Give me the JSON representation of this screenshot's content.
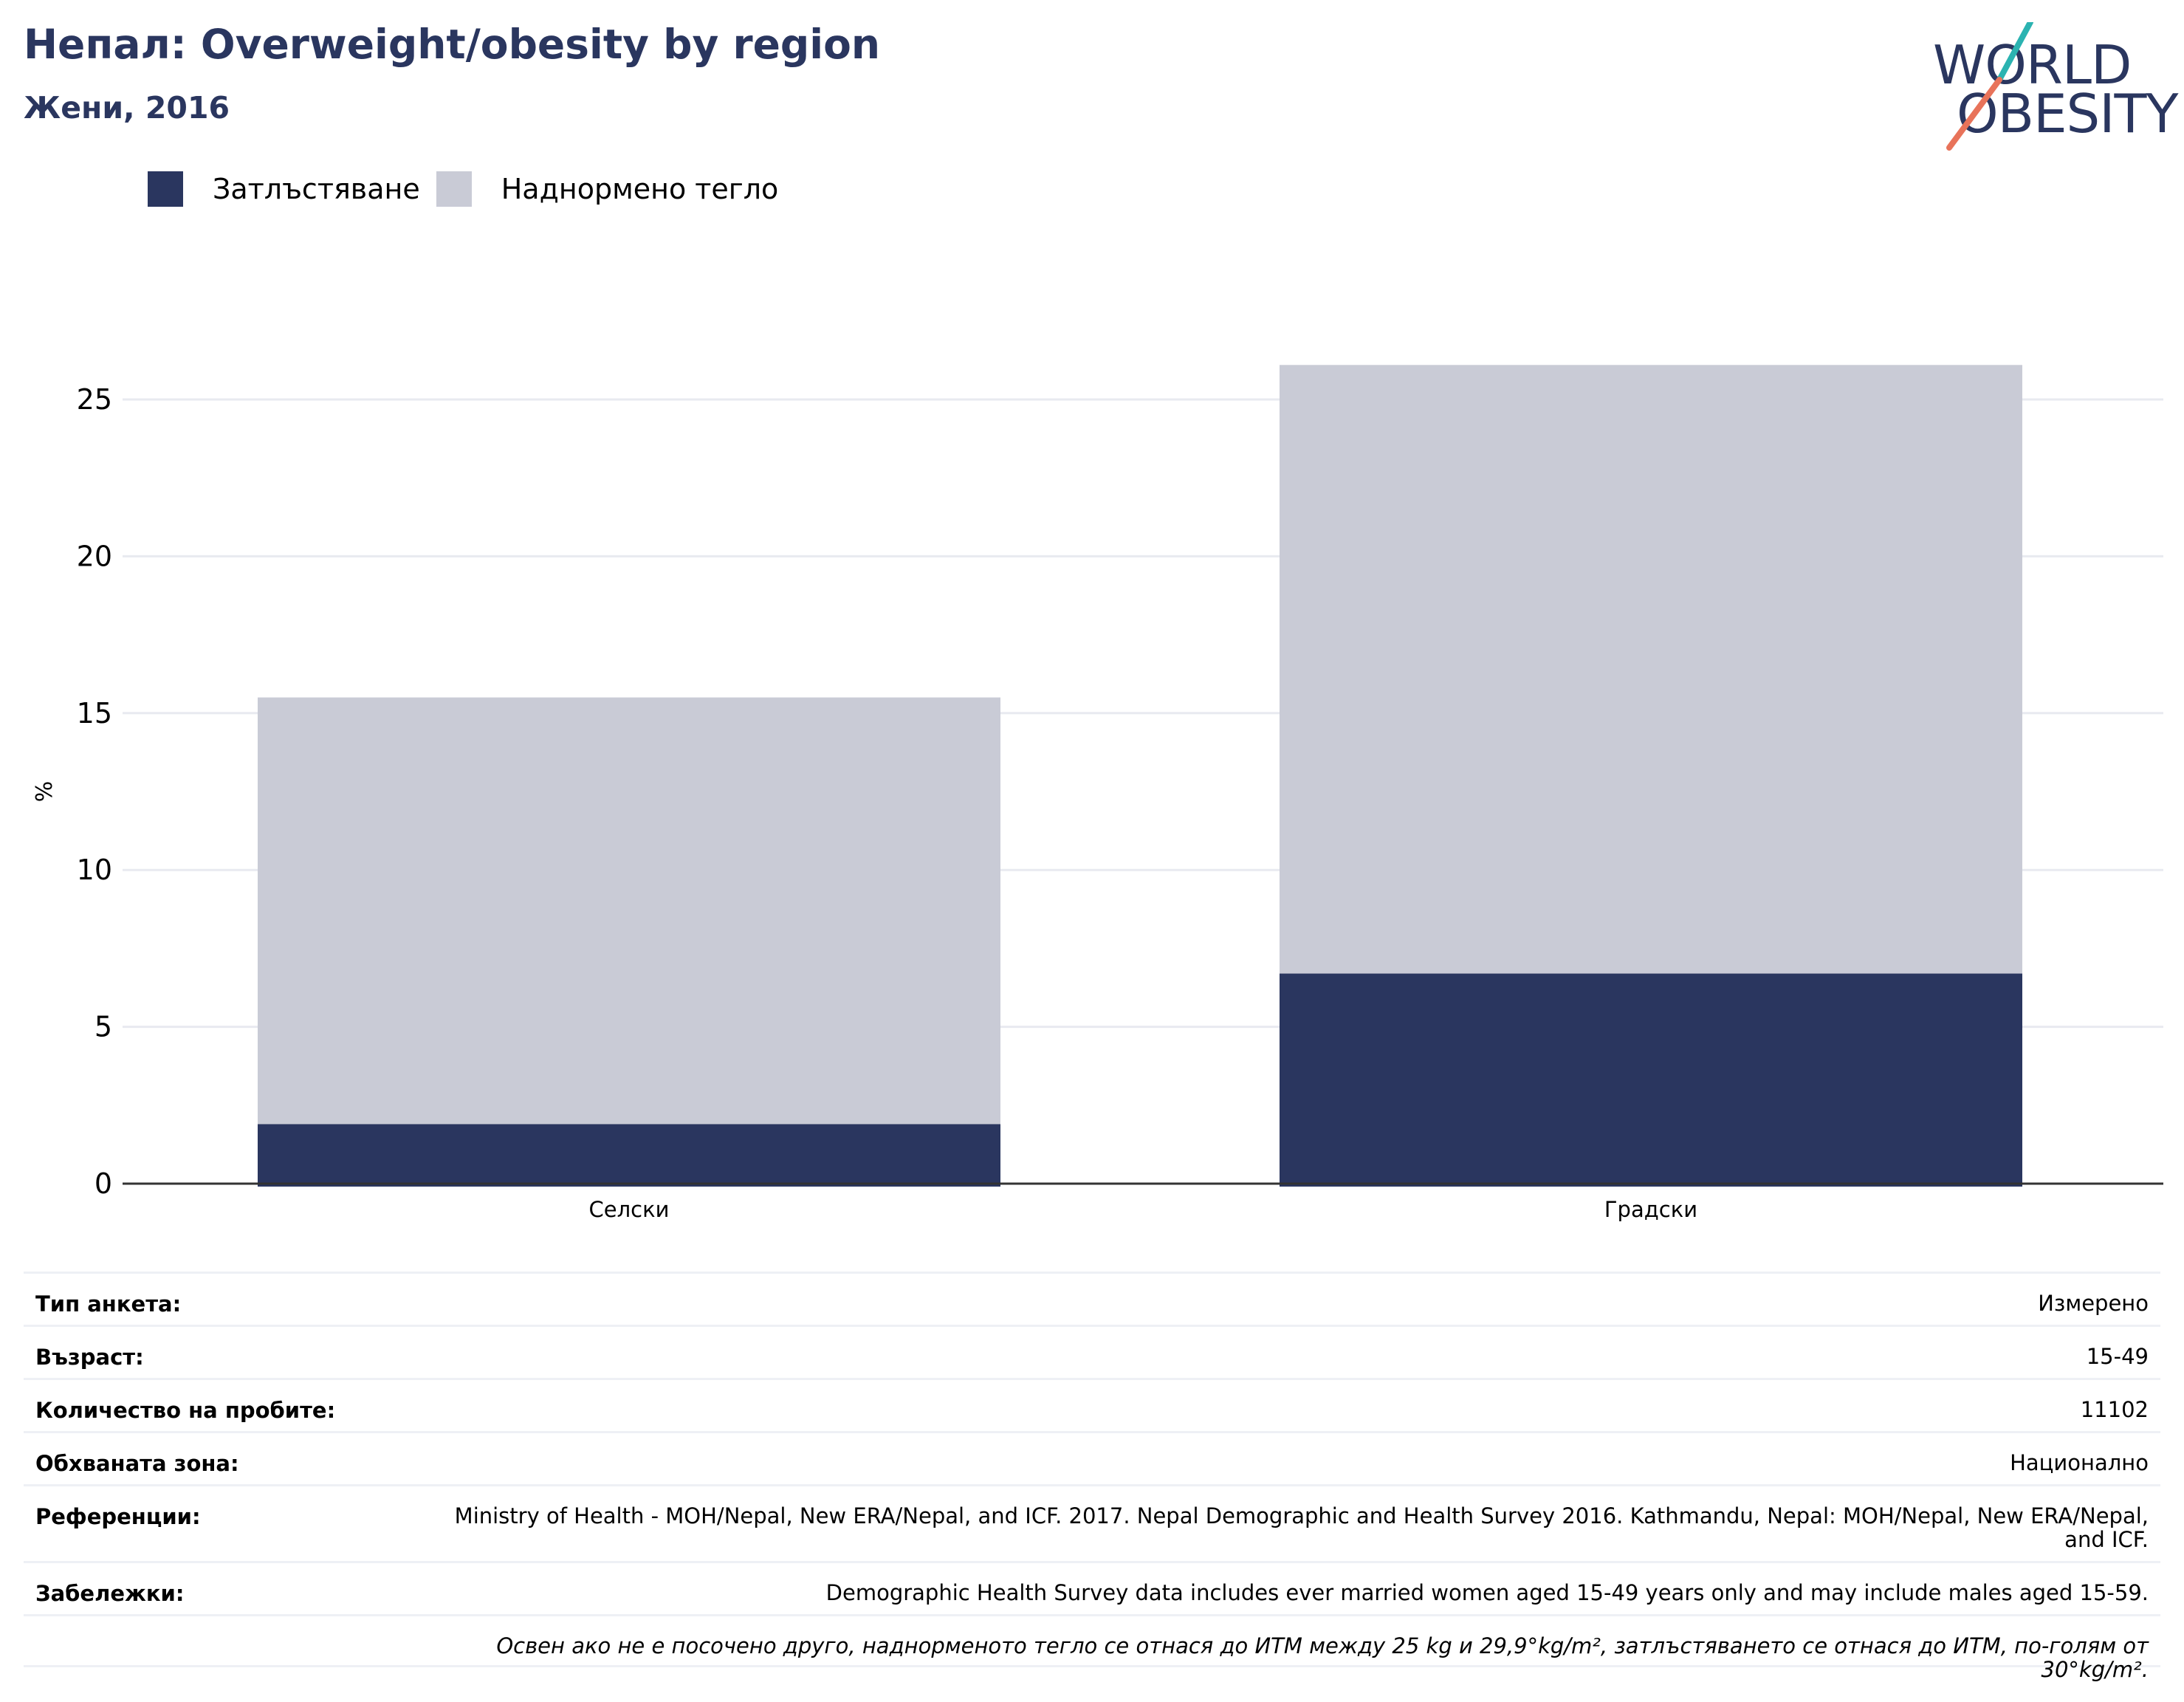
{
  "header": {
    "title": "Непал: Overweight/obesity by region",
    "subtitle": "Жени, 2016"
  },
  "logo": {
    "line1": "WORLD",
    "line2": "OBESITY"
  },
  "colors": {
    "obesity": "#2a365f",
    "overweight": "#c9cbd6",
    "title": "#2a365f",
    "logo_teal": "#2bb3b1",
    "logo_coral": "#e8735a"
  },
  "legend": [
    {
      "label": "Затлъстяване",
      "color": "#2a365f"
    },
    {
      "label": "Наднормено тегло",
      "color": "#c9cbd6"
    }
  ],
  "chart_data": {
    "type": "bar",
    "stacked": true,
    "categories": [
      "Селски",
      "Градски"
    ],
    "series": [
      {
        "name": "Затлъстяване",
        "values": [
          1.9,
          6.7
        ]
      },
      {
        "name": "Наднормено тегло",
        "values": [
          13.6,
          19.4
        ]
      }
    ],
    "ylabel": "%",
    "ylim": [
      0,
      27.5
    ],
    "yticks": [
      0,
      5,
      10,
      15,
      20,
      25
    ],
    "grid": true,
    "legend_position": "top-left"
  },
  "info": [
    {
      "key": "Тип анкета:",
      "value": "Измерено"
    },
    {
      "key": "Възраст:",
      "value": "15-49"
    },
    {
      "key": "Количество на пробите:",
      "value": "11102"
    },
    {
      "key": "Обхваната зона:",
      "value": "Национално"
    },
    {
      "key": "Референции:",
      "value": "Ministry of Health - MOH/Nepal, New ERA/Nepal, and ICF. 2017. Nepal Demographic and Health Survey 2016. Kathmandu, Nepal: MOH/Nepal, New ERA/Nepal, and ICF."
    },
    {
      "key": "Забележки:",
      "value": "Demographic Health Survey data includes ever married women aged 15-49 years only and may include males aged 15-59."
    }
  ],
  "footnote": "Освен ако не е посочено друго, наднорменото тегло се отнася до ИТМ между 25 kg и 29,9°kg/m², затлъстяването се отнася до ИТМ, по-голям от 30°kg/m²."
}
